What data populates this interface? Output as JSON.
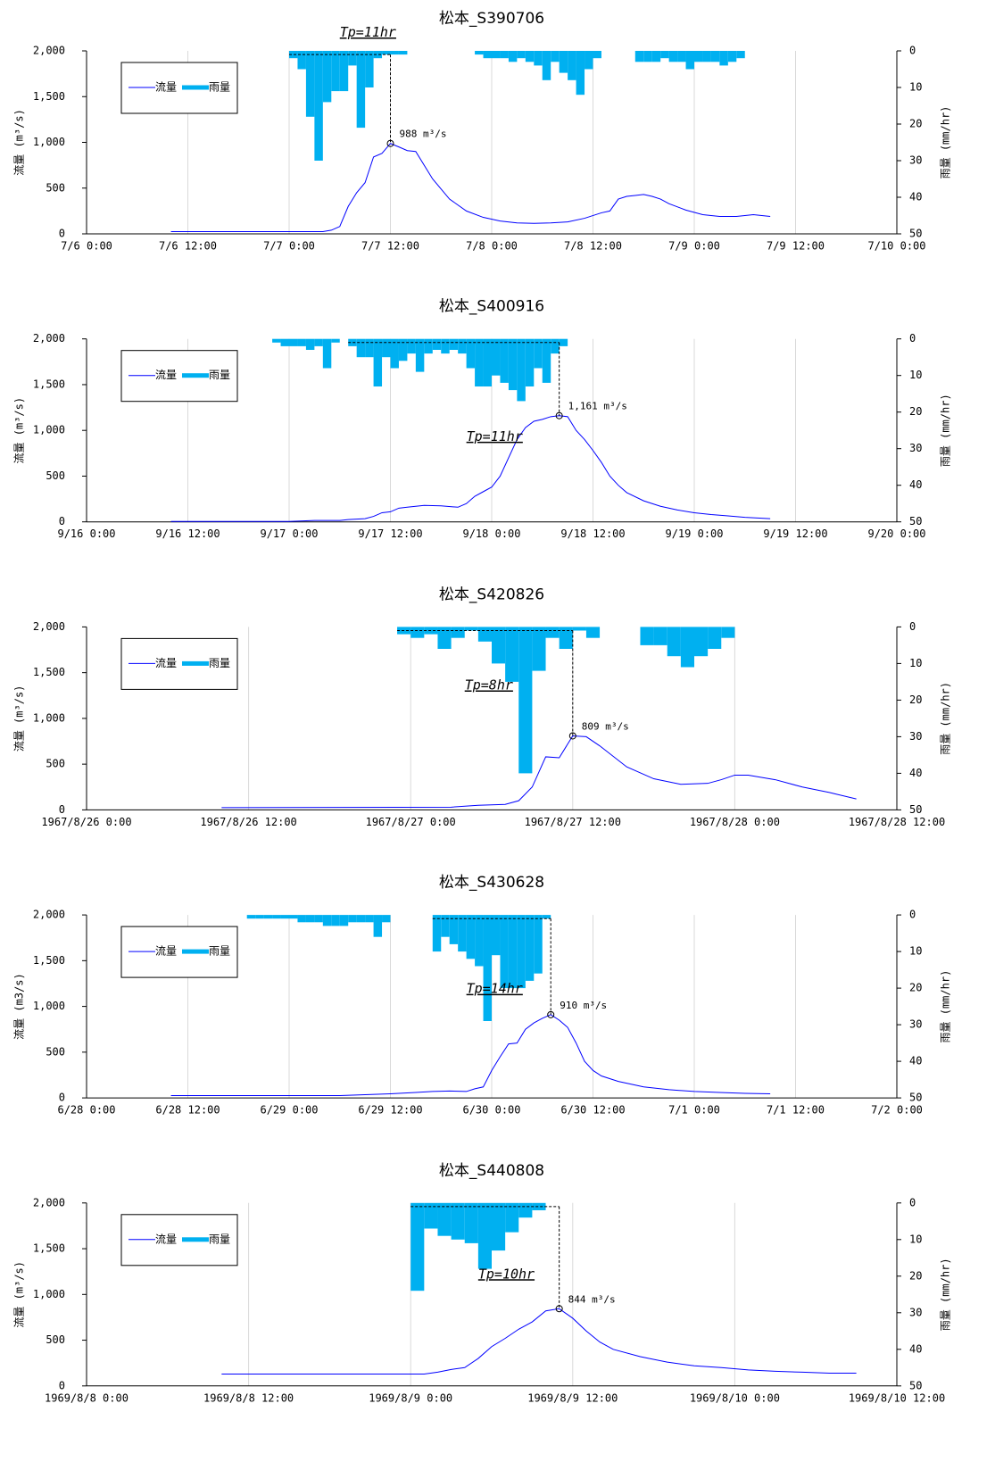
{
  "chart_data": [
    {
      "type": "bar-line",
      "title": "松本_S390706",
      "ylabel": "流量 (m³/s)",
      "y2label": "雨量 (mm/hr)",
      "legend": "upper left",
      "grid": "x",
      "y2_inverted": true,
      "xlim": [
        0,
        96
      ],
      "xticks": [
        {
          "value": 0,
          "label": "7/6 0:00"
        },
        {
          "value": 12,
          "label": "7/6 12:00"
        },
        {
          "value": 24,
          "label": "7/7 0:00"
        },
        {
          "value": 36,
          "label": "7/7 12:00"
        },
        {
          "value": 48,
          "label": "7/8 0:00"
        },
        {
          "value": 60,
          "label": "7/8 12:00"
        },
        {
          "value": 72,
          "label": "7/9 0:00"
        },
        {
          "value": 84,
          "label": "7/9 12:00"
        },
        {
          "value": 96,
          "label": "7/10 0:00"
        }
      ],
      "ylim": [
        0,
        2000
      ],
      "yticks": [
        0,
        500,
        {
          "value": 1000,
          "label": "1,000"
        },
        {
          "value": 1500,
          "label": "1,500"
        },
        {
          "value": 2000,
          "label": "2,000"
        }
      ],
      "y2lim": [
        0,
        50
      ],
      "y2ticks": [
        0,
        10,
        20,
        30,
        40,
        50
      ],
      "series": [
        {
          "name": "流量",
          "kind": "line",
          "color": "#0000ff",
          "x": [
            10,
            28,
            29,
            30,
            31,
            32,
            33,
            34,
            35,
            36,
            37,
            38,
            39,
            41,
            43,
            45,
            47,
            49,
            51,
            53,
            55,
            57,
            59,
            61,
            62,
            63,
            64,
            65,
            66,
            67,
            68,
            69,
            71,
            73,
            75,
            77,
            79,
            81
          ],
          "values": [
            25,
            25,
            40,
            80,
            300,
            450,
            560,
            840,
            880,
            988,
            950,
            910,
            900,
            600,
            380,
            250,
            180,
            140,
            120,
            115,
            120,
            130,
            170,
            230,
            250,
            380,
            410,
            420,
            430,
            410,
            380,
            330,
            260,
            210,
            190,
            190,
            210,
            190
          ]
        },
        {
          "name": "雨量",
          "kind": "bar",
          "axis": "y2",
          "color": "#00b0f0",
          "x": [
            24,
            25,
            26,
            27,
            28,
            29,
            30,
            31,
            32,
            33,
            34,
            35,
            36,
            37,
            46,
            47,
            48,
            49,
            50,
            51,
            52,
            53,
            54,
            55,
            56,
            57,
            58,
            59,
            60,
            65,
            66,
            67,
            68,
            69,
            70,
            71,
            72,
            73,
            74,
            75,
            76,
            77
          ],
          "values": [
            2,
            5,
            18,
            30,
            14,
            11,
            11,
            4,
            21,
            10,
            2,
            1,
            1,
            1,
            1,
            2,
            2,
            2,
            3,
            2,
            3,
            4,
            8,
            3,
            6,
            8,
            12,
            5,
            2,
            3,
            3,
            3,
            2,
            3,
            3,
            5,
            3,
            3,
            3,
            4,
            3,
            2
          ]
        }
      ],
      "tp": {
        "label": "Tp=11hr",
        "x": 30,
        "y": 2200
      },
      "peak": {
        "label": "988 m³/s",
        "x": 36,
        "y": 988
      }
    },
    {
      "type": "bar-line",
      "title": "松本_S400916",
      "ylabel": "流量 (m³/s)",
      "y2label": "雨量 (mm/hr)",
      "legend": "upper left",
      "grid": "x",
      "y2_inverted": true,
      "xlim": [
        0,
        96
      ],
      "xticks": [
        {
          "value": 0,
          "label": "9/16 0:00"
        },
        {
          "value": 12,
          "label": "9/16 12:00"
        },
        {
          "value": 24,
          "label": "9/17 0:00"
        },
        {
          "value": 36,
          "label": "9/17 12:00"
        },
        {
          "value": 48,
          "label": "9/18 0:00"
        },
        {
          "value": 60,
          "label": "9/18 12:00"
        },
        {
          "value": 72,
          "label": "9/19 0:00"
        },
        {
          "value": 84,
          "label": "9/19 12:00"
        },
        {
          "value": 96,
          "label": "9/20 0:00"
        }
      ],
      "ylim": [
        0,
        2000
      ],
      "yticks": [
        0,
        500,
        {
          "value": 1000,
          "label": "1,000"
        },
        {
          "value": 1500,
          "label": "1,500"
        },
        {
          "value": 2000,
          "label": "2,000"
        }
      ],
      "y2lim": [
        0,
        50
      ],
      "y2ticks": [
        0,
        10,
        20,
        30,
        40,
        50
      ],
      "series": [
        {
          "name": "流量",
          "kind": "line",
          "color": "#0000ff",
          "x": [
            10,
            24,
            27,
            30,
            31,
            33,
            34,
            35,
            36,
            37,
            38,
            40,
            42,
            44,
            45,
            46,
            47,
            48,
            49,
            50,
            51,
            52,
            53,
            54,
            55,
            56,
            57,
            58,
            59,
            60,
            61,
            62,
            63,
            64,
            66,
            68,
            70,
            72,
            74,
            76,
            78,
            80,
            81
          ],
          "values": [
            5,
            5,
            15,
            15,
            25,
            35,
            60,
            100,
            110,
            150,
            160,
            180,
            175,
            160,
            200,
            280,
            330,
            380,
            500,
            700,
            900,
            1030,
            1100,
            1120,
            1150,
            1161,
            1150,
            1000,
            900,
            780,
            650,
            500,
            400,
            320,
            230,
            170,
            130,
            100,
            80,
            65,
            50,
            40,
            35
          ]
        },
        {
          "name": "雨量",
          "kind": "bar",
          "axis": "y2",
          "color": "#00b0f0",
          "x": [
            22,
            23,
            24,
            25,
            26,
            27,
            28,
            29,
            31,
            32,
            33,
            34,
            35,
            36,
            37,
            38,
            39,
            40,
            41,
            42,
            43,
            44,
            45,
            46,
            47,
            48,
            49,
            50,
            51,
            52,
            53,
            54,
            55,
            56
          ],
          "values": [
            1,
            2,
            2,
            2,
            3,
            2,
            8,
            1,
            2,
            5,
            5,
            13,
            5,
            8,
            6,
            4,
            9,
            4,
            3,
            4,
            3,
            4,
            8,
            13,
            13,
            10,
            12,
            14,
            17,
            13,
            8,
            12,
            4,
            2
          ]
        }
      ],
      "tp": {
        "label": "Tp=11hr",
        "x": 45,
        "y": 930
      },
      "peak": {
        "label": "1,161 m³/s",
        "x": 56,
        "y": 1161
      }
    },
    {
      "type": "bar-line",
      "title": "松本_S420826",
      "ylabel": "流量 (m³/s)",
      "y2label": "雨量 (mm/hr)",
      "legend": "upper left",
      "grid": "x",
      "y2_inverted": true,
      "xlim": [
        0,
        60
      ],
      "xticks": [
        {
          "value": 0,
          "label": "1967/8/26 0:00"
        },
        {
          "value": 12,
          "label": "1967/8/26 12:00"
        },
        {
          "value": 24,
          "label": "1967/8/27 0:00"
        },
        {
          "value": 36,
          "label": "1967/8/27 12:00"
        },
        {
          "value": 48,
          "label": "1967/8/28 0:00"
        },
        {
          "value": 60,
          "label": "1967/8/28 12:00"
        }
      ],
      "ylim": [
        0,
        2000
      ],
      "yticks": [
        0,
        500,
        {
          "value": 1000,
          "label": "1,000"
        },
        {
          "value": 1500,
          "label": "1,500"
        },
        {
          "value": 2000,
          "label": "2,000"
        }
      ],
      "y2lim": [
        0,
        50
      ],
      "y2ticks": [
        0,
        10,
        20,
        30,
        40,
        50
      ],
      "series": [
        {
          "name": "流量",
          "kind": "line",
          "color": "#0000ff",
          "x": [
            10,
            27,
            29,
            31,
            32,
            33,
            34,
            35,
            36,
            37,
            38,
            40,
            42,
            44,
            46,
            47,
            48,
            49,
            51,
            53,
            55,
            57
          ],
          "values": [
            25,
            30,
            50,
            60,
            100,
            250,
            580,
            570,
            809,
            800,
            700,
            470,
            340,
            280,
            290,
            330,
            380,
            380,
            330,
            250,
            190,
            120
          ]
        },
        {
          "name": "雨量",
          "kind": "bar",
          "axis": "y2",
          "color": "#00b0f0",
          "x": [
            23,
            24,
            25,
            26,
            27,
            28,
            29,
            30,
            31,
            32,
            33,
            34,
            35,
            36,
            37,
            41,
            42,
            43,
            44,
            45,
            46,
            47
          ],
          "values": [
            2,
            3,
            2,
            6,
            3,
            1,
            4,
            10,
            15,
            40,
            12,
            3,
            6,
            1,
            3,
            5,
            5,
            8,
            11,
            8,
            6,
            3
          ]
        }
      ],
      "tp": {
        "label": "Tp=8hr",
        "x": 28,
        "y": 1360
      },
      "peak": {
        "label": "809 m³/s",
        "x": 36,
        "y": 809
      }
    },
    {
      "type": "bar-line",
      "title": "松本_S430628",
      "ylabel": "流量 (m3/s)",
      "y2label": "雨量 (mm/hr)",
      "legend": "upper left",
      "grid": "x",
      "y2_inverted": true,
      "xlim": [
        0,
        96
      ],
      "xticks": [
        {
          "value": 0,
          "label": "6/28 0:00"
        },
        {
          "value": 12,
          "label": "6/28 12:00"
        },
        {
          "value": 24,
          "label": "6/29 0:00"
        },
        {
          "value": 36,
          "label": "6/29 12:00"
        },
        {
          "value": 48,
          "label": "6/30 0:00"
        },
        {
          "value": 60,
          "label": "6/30 12:00"
        },
        {
          "value": 72,
          "label": "7/1 0:00"
        },
        {
          "value": 84,
          "label": "7/1 12:00"
        },
        {
          "value": 96,
          "label": "7/2 0:00"
        }
      ],
      "ylim": [
        0,
        2000
      ],
      "yticks": [
        0,
        500,
        {
          "value": 1000,
          "label": "1,000"
        },
        {
          "value": 1500,
          "label": "1,500"
        },
        {
          "value": 2000,
          "label": "2,000"
        }
      ],
      "y2lim": [
        0,
        50
      ],
      "y2ticks": [
        0,
        10,
        20,
        30,
        40,
        50
      ],
      "series": [
        {
          "name": "流量",
          "kind": "line",
          "color": "#0000ff",
          "x": [
            10,
            30,
            33,
            36,
            39,
            41,
            43,
            45,
            46,
            47,
            48,
            49,
            50,
            51,
            52,
            53,
            54,
            55,
            56,
            57,
            58,
            59,
            60,
            61,
            63,
            66,
            69,
            72,
            75,
            78,
            81
          ],
          "values": [
            25,
            25,
            35,
            45,
            60,
            70,
            75,
            70,
            100,
            120,
            300,
            450,
            590,
            600,
            750,
            820,
            870,
            910,
            850,
            770,
            600,
            400,
            300,
            240,
            180,
            120,
            90,
            70,
            60,
            50,
            45
          ]
        },
        {
          "name": "雨量",
          "kind": "bar",
          "axis": "y2",
          "color": "#00b0f0",
          "x": [
            19,
            20,
            21,
            22,
            23,
            24,
            25,
            26,
            27,
            28,
            29,
            30,
            31,
            32,
            33,
            34,
            35,
            41,
            42,
            43,
            44,
            45,
            46,
            47,
            48,
            49,
            50,
            51,
            52,
            53,
            54
          ],
          "values": [
            1,
            1,
            1,
            1,
            1,
            1,
            2,
            2,
            2,
            3,
            3,
            3,
            2,
            2,
            2,
            6,
            2,
            10,
            6,
            8,
            10,
            12,
            14,
            29,
            11,
            20,
            20,
            20,
            18,
            16,
            1
          ]
        }
      ],
      "tp": {
        "label": "Tp=14hr",
        "x": 45,
        "y": 1190
      },
      "peak": {
        "label": "910 m³/s",
        "x": 55,
        "y": 910
      }
    },
    {
      "type": "bar-line",
      "title": "松本_S440808",
      "ylabel": "流量 (m³/s)",
      "y2label": "雨量 (mm/hr)",
      "legend": "upper left",
      "grid": "x",
      "y2_inverted": true,
      "xlim": [
        0,
        60
      ],
      "xticks": [
        {
          "value": 0,
          "label": "1969/8/8 0:00"
        },
        {
          "value": 12,
          "label": "1969/8/8 12:00"
        },
        {
          "value": 24,
          "label": "1969/8/9 0:00"
        },
        {
          "value": 36,
          "label": "1969/8/9 12:00"
        },
        {
          "value": 48,
          "label": "1969/8/10 0:00"
        },
        {
          "value": 60,
          "label": "1969/8/10 12:00"
        }
      ],
      "ylim": [
        0,
        2000
      ],
      "yticks": [
        0,
        500,
        {
          "value": 1000,
          "label": "1,000"
        },
        {
          "value": 1500,
          "label": "1,500"
        },
        {
          "value": 2000,
          "label": "2,000"
        }
      ],
      "y2lim": [
        0,
        50
      ],
      "y2ticks": [
        0,
        10,
        20,
        30,
        40,
        50
      ],
      "series": [
        {
          "name": "流量",
          "kind": "line",
          "color": "#0000ff",
          "x": [
            10,
            25,
            26,
            27,
            28,
            29,
            30,
            31,
            32,
            33,
            34,
            35,
            36,
            37,
            38,
            39,
            41,
            43,
            45,
            47,
            49,
            51,
            53,
            55,
            57
          ],
          "values": [
            130,
            130,
            150,
            180,
            200,
            300,
            430,
            520,
            620,
            700,
            820,
            844,
            740,
            600,
            480,
            400,
            320,
            260,
            220,
            200,
            175,
            160,
            150,
            140,
            140
          ]
        },
        {
          "name": "雨量",
          "kind": "bar",
          "axis": "y2",
          "color": "#00b0f0",
          "x": [
            24,
            25,
            26,
            27,
            28,
            29,
            30,
            31,
            32,
            33
          ],
          "values": [
            24,
            7,
            9,
            10,
            11,
            18,
            13,
            8,
            4,
            2
          ]
        }
      ],
      "tp": {
        "label": "Tp=10hr",
        "x": 29,
        "y": 1220
      },
      "peak": {
        "label": "844 m³/s",
        "x": 35,
        "y": 844
      }
    }
  ]
}
